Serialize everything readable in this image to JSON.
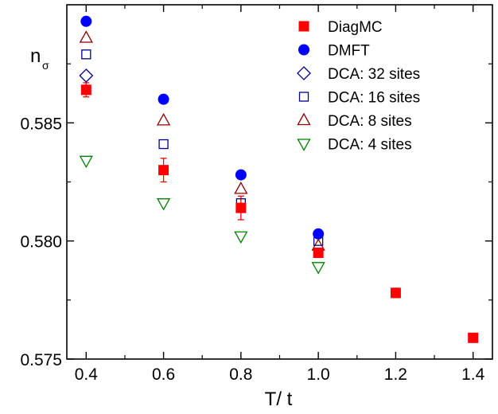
{
  "chart_data": {
    "type": "scatter",
    "xlabel": "T/ t",
    "ylabel": "n",
    "ylabel_subscript": "σ",
    "xlim": [
      0.35,
      1.45
    ],
    "ylim": [
      0.575,
      0.59
    ],
    "xticks": [
      0.4,
      0.6,
      0.8,
      1.0,
      1.2,
      1.4
    ],
    "xtick_labels": [
      "0.4",
      "0.6",
      "0.8",
      "1.0",
      "1.2",
      "1.4"
    ],
    "yticks": [
      0.575,
      0.58,
      0.585
    ],
    "ytick_labels": [
      "0.575",
      "0.580",
      "0.585"
    ],
    "grid": false,
    "legend_position": "top-right",
    "series": [
      {
        "name": "DiagMC",
        "marker": "filled-square",
        "color": "#ff0000",
        "x": [
          0.4,
          0.6,
          0.8,
          1.0,
          1.2,
          1.4
        ],
        "y": [
          0.5864,
          0.583,
          0.5814,
          0.5795,
          0.5778,
          0.5759
        ],
        "yerr": [
          0.0003,
          0.0005,
          0.0005,
          0.0002,
          0.0002,
          0.0001
        ]
      },
      {
        "name": "DMFT",
        "marker": "filled-circle",
        "color": "#0000ff",
        "x": [
          0.4,
          0.6,
          0.8,
          1.0
        ],
        "y": [
          0.5893,
          0.586,
          0.5828,
          0.5803
        ]
      },
      {
        "name": "DCA: 32 sites",
        "marker": "open-diamond",
        "color": "#00008b",
        "x": [
          0.4
        ],
        "y": [
          0.587
        ]
      },
      {
        "name": "DCA: 16 sites",
        "marker": "open-square",
        "color": "#00008b",
        "x": [
          0.4,
          0.6,
          0.8,
          1.0
        ],
        "y": [
          0.5879,
          0.5841,
          0.5816,
          0.58
        ]
      },
      {
        "name": "DCA: 8 sites",
        "marker": "open-triangle-up",
        "color": "#8b0000",
        "x": [
          0.4,
          0.6,
          0.8,
          1.0
        ],
        "y": [
          0.5886,
          0.5851,
          0.5822,
          0.5798
        ]
      },
      {
        "name": "DCA: 4 sites",
        "marker": "open-triangle-down",
        "color": "#008000",
        "x": [
          0.4,
          0.6,
          0.8,
          1.0
        ],
        "y": [
          0.5834,
          0.5816,
          0.5802,
          0.5789
        ]
      }
    ]
  }
}
